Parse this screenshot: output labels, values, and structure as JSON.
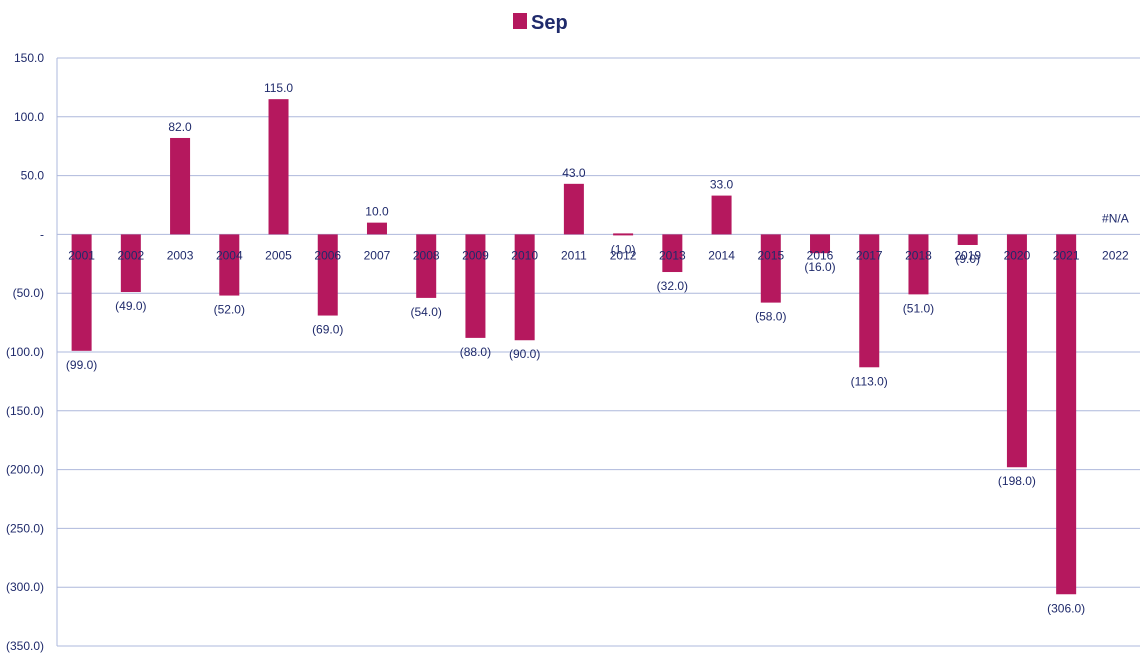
{
  "chart_data": {
    "type": "bar",
    "categories": [
      "2001",
      "2002",
      "2003",
      "2004",
      "2005",
      "2006",
      "2007",
      "2008",
      "2009",
      "2010",
      "2011",
      "2012",
      "2013",
      "2014",
      "2015",
      "2016",
      "2017",
      "2018",
      "2019",
      "2020",
      "2021",
      "2022"
    ],
    "series": [
      {
        "name": "Sep",
        "color": "#b5185e",
        "values": [
          -99,
          -49,
          82,
          -52,
          115,
          -69,
          10,
          -54,
          -88,
          -90,
          43,
          -1,
          -32,
          33,
          -58,
          -16,
          -113,
          -51,
          -9,
          -198,
          -306,
          null
        ],
        "data_labels": [
          "(99.0)",
          "(49.0)",
          "82.0",
          "(52.0)",
          "115.0",
          "(69.0)",
          "10.0",
          "(54.0)",
          "(88.0)",
          "(90.0)",
          "43.0",
          "(1.0)",
          "(32.0)",
          "33.0",
          "(58.0)",
          "(16.0)",
          "(113.0)",
          "(51.0)",
          "(9.0)",
          "(198.0)",
          "(306.0)",
          "#N/A"
        ]
      }
    ],
    "ylim": [
      -350,
      150
    ],
    "y_ticks": [
      150,
      100,
      50,
      0,
      -50,
      -100,
      -150,
      -200,
      -250,
      -300,
      -350
    ],
    "y_tick_labels": [
      "150.0",
      "100.0",
      "50.0",
      "-",
      "(50.0)",
      "(100.0)",
      "(150.0)",
      "(200.0)",
      "(250.0)",
      "(300.0)",
      "(350.0)"
    ],
    "legend_position": "top-center",
    "grid": true,
    "gridline_color": "#aeb8dc",
    "text_color": "#1f2a6b"
  }
}
